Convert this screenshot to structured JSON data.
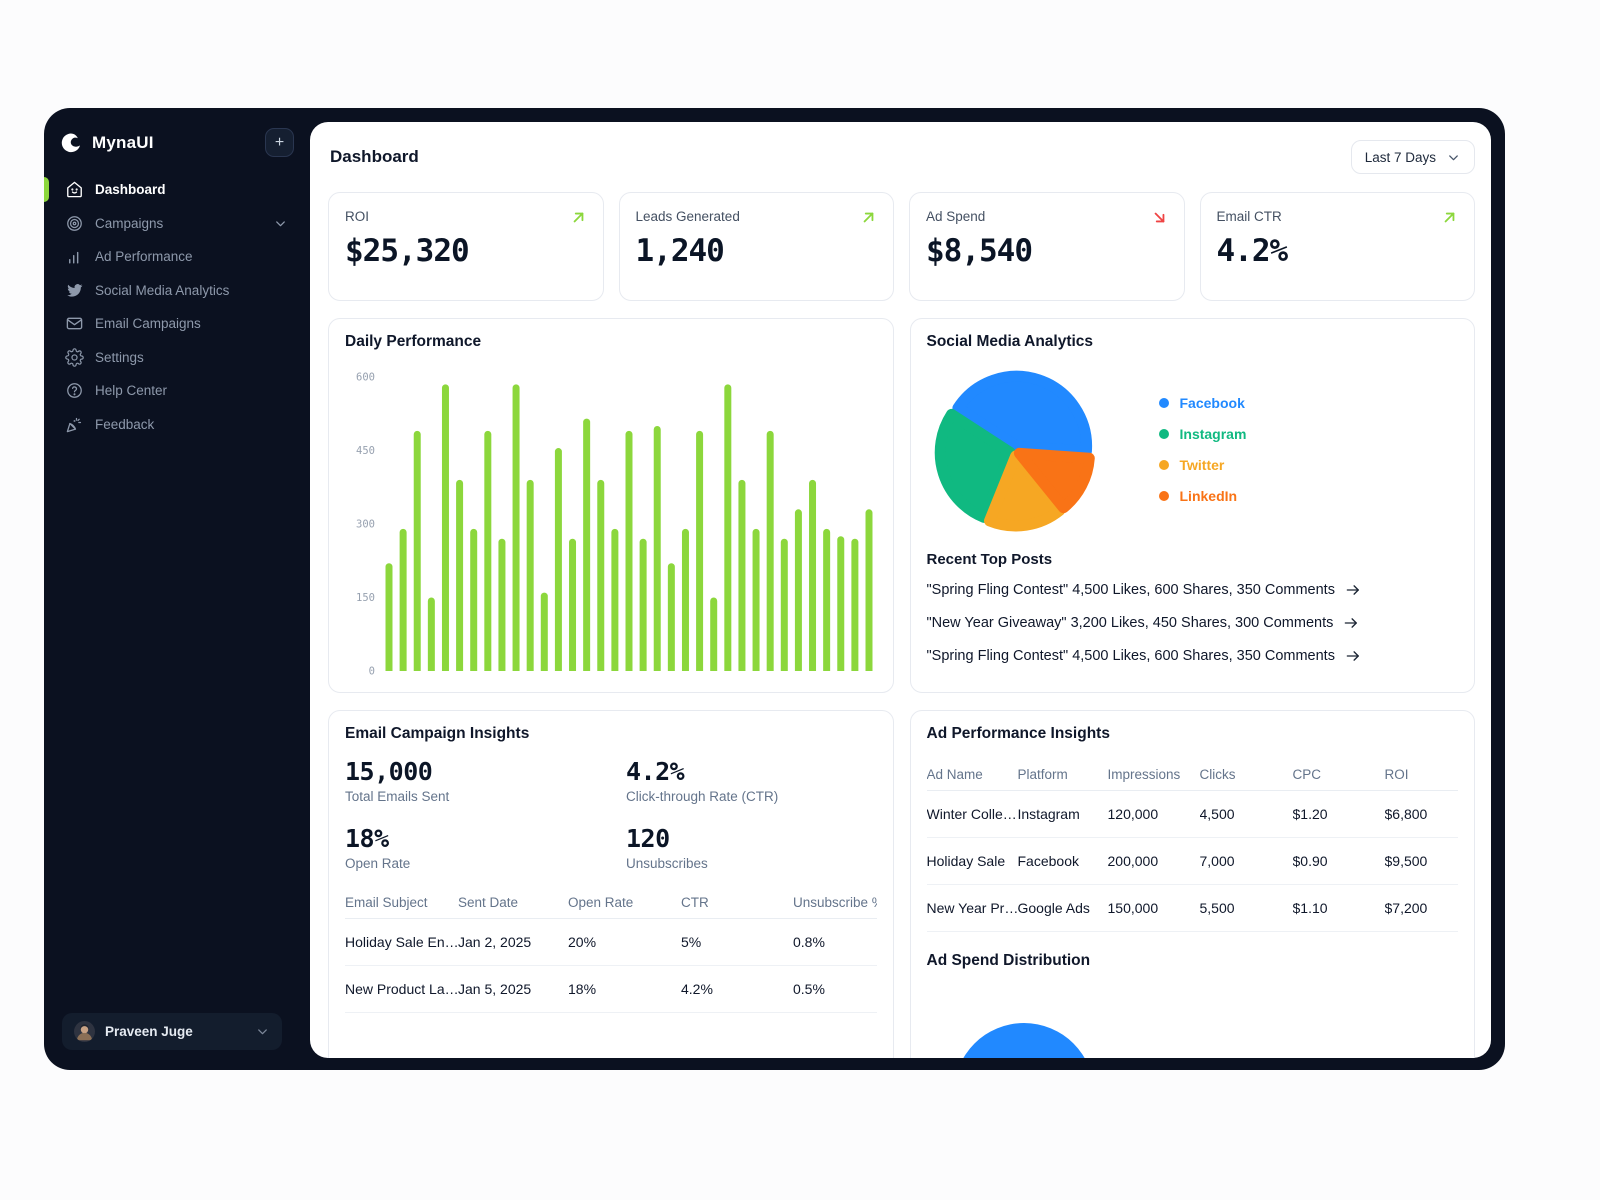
{
  "app": {
    "name": "MynaUI"
  },
  "icons": {
    "plus": "+",
    "trend_up": "↗",
    "trend_down": "↘",
    "arrow_right": "→",
    "chevron_down": "⌄"
  },
  "colors": {
    "accent_lime": "#8CD73C",
    "negative_red": "#EF4444",
    "facebook_blue": "#2189FF",
    "instagram_green": "#10B981",
    "twitter_amber": "#F6A723",
    "linkedin_orange": "#F97316",
    "sidebar_bg": "#0B1120",
    "panel_bg": "#FFFFFF",
    "border": "#E7EAF0",
    "heading": "#0F172A",
    "muted": "#64748B"
  },
  "sidebar": {
    "items": [
      {
        "label": "Dashboard",
        "icon": "home-smile-icon",
        "active": true
      },
      {
        "label": "Campaigns",
        "icon": "target-icon",
        "has_chevron": true
      },
      {
        "label": "Ad Performance",
        "icon": "bar-chart-icon"
      },
      {
        "label": "Social Media Analytics",
        "icon": "twitter-icon"
      },
      {
        "label": "Email Campaigns",
        "icon": "envelope-icon"
      },
      {
        "label": "Settings",
        "icon": "gear-icon"
      },
      {
        "label": "Help Center",
        "icon": "help-circle-icon"
      },
      {
        "label": "Feedback",
        "icon": "party-horn-icon"
      }
    ],
    "user": {
      "name": "Praveen Juge"
    }
  },
  "header": {
    "title": "Dashboard",
    "range_selector": "Last 7 Days"
  },
  "stat_cards": [
    {
      "label": "ROI",
      "value": "$25,320",
      "trend": "up"
    },
    {
      "label": "Leads Generated",
      "value": "1,240",
      "trend": "up"
    },
    {
      "label": "Ad Spend",
      "value": "$8,540",
      "trend": "down"
    },
    {
      "label": "Email CTR",
      "value": "4.2%",
      "trend": "up"
    }
  ],
  "chart_data": [
    {
      "type": "bar",
      "title": "Daily Performance",
      "xlabel": "",
      "ylabel": "",
      "ylim": [
        0,
        600
      ],
      "yticks": [
        0,
        150,
        300,
        450,
        600
      ],
      "grid": false,
      "bar_color": "#8CD73C",
      "values": [
        220,
        290,
        490,
        150,
        585,
        390,
        290,
        490,
        270,
        585,
        390,
        160,
        455,
        270,
        515,
        390,
        290,
        490,
        270,
        500,
        220,
        290,
        490,
        150,
        585,
        390,
        290,
        490,
        270,
        330,
        390,
        290,
        275,
        270,
        330
      ]
    },
    {
      "type": "pie",
      "title": "Social Media Analytics",
      "legend_position": "right",
      "slices": [
        {
          "name": "Facebook",
          "value": 42,
          "color": "#2189FF",
          "start": -57,
          "end": 94
        },
        {
          "name": "Instagram",
          "value": 28,
          "color": "#10B981",
          "start": 202,
          "end": 303
        },
        {
          "name": "Twitter",
          "value": 17,
          "color": "#F6A723",
          "start": 141,
          "end": 202
        },
        {
          "name": "LinkedIn",
          "value": 13,
          "color": "#F97316",
          "start": 94,
          "end": 141
        }
      ]
    },
    {
      "type": "pie",
      "title": "Ad Spend Distribution",
      "clipped": true,
      "slices": [
        {
          "color": "#2189FF"
        }
      ]
    }
  ],
  "social": {
    "title": "Social Media Analytics",
    "recent_top_posts": {
      "title": "Recent Top Posts",
      "posts": [
        "\"Spring Fling Contest\" 4,500 Likes, 600 Shares, 350 Comments",
        "\"New Year Giveaway\" 3,200 Likes, 450 Shares, 300 Comments",
        "\"Spring Fling Contest\" 4,500 Likes, 600 Shares, 350 Comments"
      ]
    }
  },
  "email_insights": {
    "title": "Email Campaign Insights",
    "stats": [
      {
        "value": "15,000",
        "label": "Total Emails Sent"
      },
      {
        "value": "4.2%",
        "label": "Click-through Rate (CTR)"
      },
      {
        "value": "18%",
        "label": "Open Rate"
      },
      {
        "value": "120",
        "label": "Unsubscribes"
      }
    ],
    "table": {
      "headers": [
        "Email Subject",
        "Sent Date",
        "Open Rate",
        "CTR",
        "Unsubscribe %"
      ],
      "rows": [
        [
          "Holiday Sale En…",
          "Jan 2, 2025",
          "20%",
          "5%",
          "0.8%"
        ],
        [
          "New Product La…",
          "Jan 5, 2025",
          "18%",
          "4.2%",
          "0.5%"
        ]
      ]
    }
  },
  "ad_insights": {
    "title": "Ad Performance Insights",
    "table": {
      "headers": [
        "Ad Name",
        "Platform",
        "Impressions",
        "Clicks",
        "CPC",
        "ROI"
      ],
      "rows": [
        [
          "Winter Colle…",
          "Instagram",
          "120,000",
          "4,500",
          "$1.20",
          "$6,800"
        ],
        [
          "Holiday Sale",
          "Facebook",
          "200,000",
          "7,000",
          "$0.90",
          "$9,500"
        ],
        [
          "New Year Pr…",
          "Google Ads",
          "150,000",
          "5,500",
          "$1.10",
          "$7,200"
        ]
      ]
    },
    "distribution_title": "Ad Spend Distribution"
  }
}
